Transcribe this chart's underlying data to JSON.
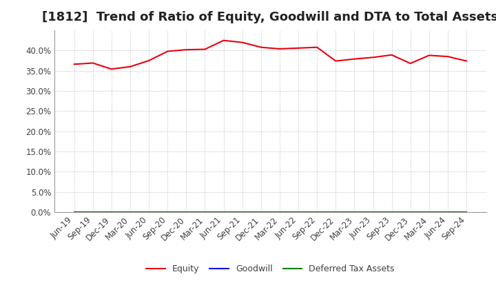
{
  "title": "[1812]  Trend of Ratio of Equity, Goodwill and DTA to Total Assets",
  "x_labels": [
    "Jun-19",
    "Sep-19",
    "Dec-19",
    "Mar-20",
    "Jun-20",
    "Sep-20",
    "Dec-20",
    "Mar-21",
    "Jun-21",
    "Sep-21",
    "Dec-21",
    "Mar-22",
    "Jun-22",
    "Sep-22",
    "Dec-22",
    "Mar-23",
    "Jun-23",
    "Sep-23",
    "Dec-23",
    "Mar-24",
    "Jun-24",
    "Sep-24"
  ],
  "equity": [
    0.366,
    0.369,
    0.354,
    0.36,
    0.375,
    0.398,
    0.402,
    0.403,
    0.425,
    0.42,
    0.408,
    0.404,
    0.406,
    0.408,
    0.374,
    0.379,
    0.383,
    0.389,
    0.368,
    0.388,
    0.385,
    0.374
  ],
  "goodwill": [
    0.0,
    0.0,
    0.0,
    0.0,
    0.0,
    0.0,
    0.0,
    0.0,
    0.0,
    0.0,
    0.0,
    0.0,
    0.0,
    0.0,
    0.0,
    0.0,
    0.0,
    0.0,
    0.0,
    0.0,
    0.0,
    0.0
  ],
  "dta": [
    0.0,
    0.0,
    0.0,
    0.0,
    0.0,
    0.0,
    0.0,
    0.0,
    0.0,
    0.0,
    0.0,
    0.0,
    0.0,
    0.0,
    0.0,
    0.0,
    0.0,
    0.0,
    0.0,
    0.0,
    0.0,
    0.0
  ],
  "equity_color": "#e8000d",
  "goodwill_color": "#0000ff",
  "dta_color": "#008000",
  "background_color": "#ffffff",
  "grid_color": "#aaaaaa",
  "text_color": "#404040",
  "ylim": [
    0.0,
    0.45
  ],
  "yticks": [
    0.0,
    0.05,
    0.1,
    0.15,
    0.2,
    0.25,
    0.3,
    0.35,
    0.4
  ],
  "title_fontsize": 13,
  "tick_fontsize": 8.5,
  "legend_labels": [
    "Equity",
    "Goodwill",
    "Deferred Tax Assets"
  ]
}
